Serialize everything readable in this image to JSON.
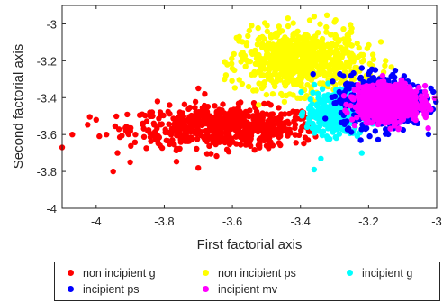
{
  "chart_data": {
    "type": "scatter",
    "title": "",
    "xlabel": "First factorial axis",
    "ylabel": "Second factorial axis",
    "xlim": [
      -4.1,
      -3.0
    ],
    "ylim": [
      -4.0,
      -2.9
    ],
    "x_ticks": [
      "-4",
      "-3.8",
      "-3.6",
      "-3.4",
      "-3.2",
      "-3"
    ],
    "y_ticks": [
      "-3",
      "-3.2",
      "-3.4",
      "-3.6",
      "-3.8",
      "-4"
    ],
    "x_tick_values": [
      -4,
      -3.8,
      -3.6,
      -3.4,
      -3.2,
      -3
    ],
    "y_tick_values": [
      -3,
      -3.2,
      -3.4,
      -3.6,
      -3.8,
      -4
    ],
    "grid": false,
    "legend_position": "bottom",
    "series": [
      {
        "name": "non incipient g",
        "color": "#ff0000",
        "cloud": {
          "cx": -3.62,
          "cy": -3.56,
          "sx": 0.14,
          "sy": 0.055,
          "n": 650,
          "xmin": -4.1,
          "xmax": -3.34,
          "ymin": -3.86,
          "ymax": -3.3
        },
        "outliers": [
          [
            -4.1,
            -3.67
          ],
          [
            -4.07,
            -3.6
          ],
          [
            -4.0,
            -3.52
          ],
          [
            -3.97,
            -3.6
          ],
          [
            -3.95,
            -3.8
          ],
          [
            -3.9,
            -3.75
          ],
          [
            -3.82,
            -3.42
          ],
          [
            -3.7,
            -3.35
          ]
        ]
      },
      {
        "name": "non incipient ps",
        "color": "#ffff00",
        "cloud": {
          "cx": -3.4,
          "cy": -3.2,
          "sx": 0.09,
          "sy": 0.085,
          "n": 700,
          "xmin": -3.63,
          "xmax": -3.12,
          "ymin": -3.44,
          "ymax": -2.95
        },
        "outliers": [
          [
            -3.36,
            -2.96
          ],
          [
            -3.3,
            -2.99
          ],
          [
            -3.58,
            -3.07
          ],
          [
            -3.15,
            -3.2
          ]
        ]
      },
      {
        "name": "incipient g",
        "color": "#00ffff",
        "cloud": {
          "cx": -3.3,
          "cy": -3.48,
          "sx": 0.04,
          "sy": 0.06,
          "n": 350,
          "xmin": -3.4,
          "xmax": -3.18,
          "ymin": -3.8,
          "ymax": -3.3
        },
        "outliers": [
          [
            -3.36,
            -3.79
          ],
          [
            -3.34,
            -3.73
          ],
          [
            -3.22,
            -3.7
          ]
        ]
      },
      {
        "name": "incipient ps",
        "color": "#0000ff",
        "cloud": {
          "cx": -3.16,
          "cy": -3.42,
          "sx": 0.06,
          "sy": 0.07,
          "n": 600,
          "xmin": -3.38,
          "xmax": -3.0,
          "ymin": -3.66,
          "ymax": -3.23
        },
        "outliers": [
          [
            -3.22,
            -3.24
          ],
          [
            -3.18,
            -3.25
          ],
          [
            -3.3,
            -3.43
          ]
        ]
      },
      {
        "name": "incipient mv",
        "color": "#ff00ff",
        "cloud": {
          "cx": -3.14,
          "cy": -3.43,
          "sx": 0.045,
          "sy": 0.045,
          "n": 1000,
          "xmin": -3.3,
          "xmax": -3.0,
          "ymin": -3.62,
          "ymax": -3.27
        },
        "outliers": []
      }
    ]
  },
  "legend": {
    "items": [
      {
        "label": "non incipient g",
        "color": "#ff0000"
      },
      {
        "label": "non incipient ps",
        "color": "#ffff00"
      },
      {
        "label": "incipient g",
        "color": "#00ffff"
      },
      {
        "label": "incipient ps",
        "color": "#0000ff"
      },
      {
        "label": "incipient mv",
        "color": "#ff00ff"
      }
    ]
  }
}
